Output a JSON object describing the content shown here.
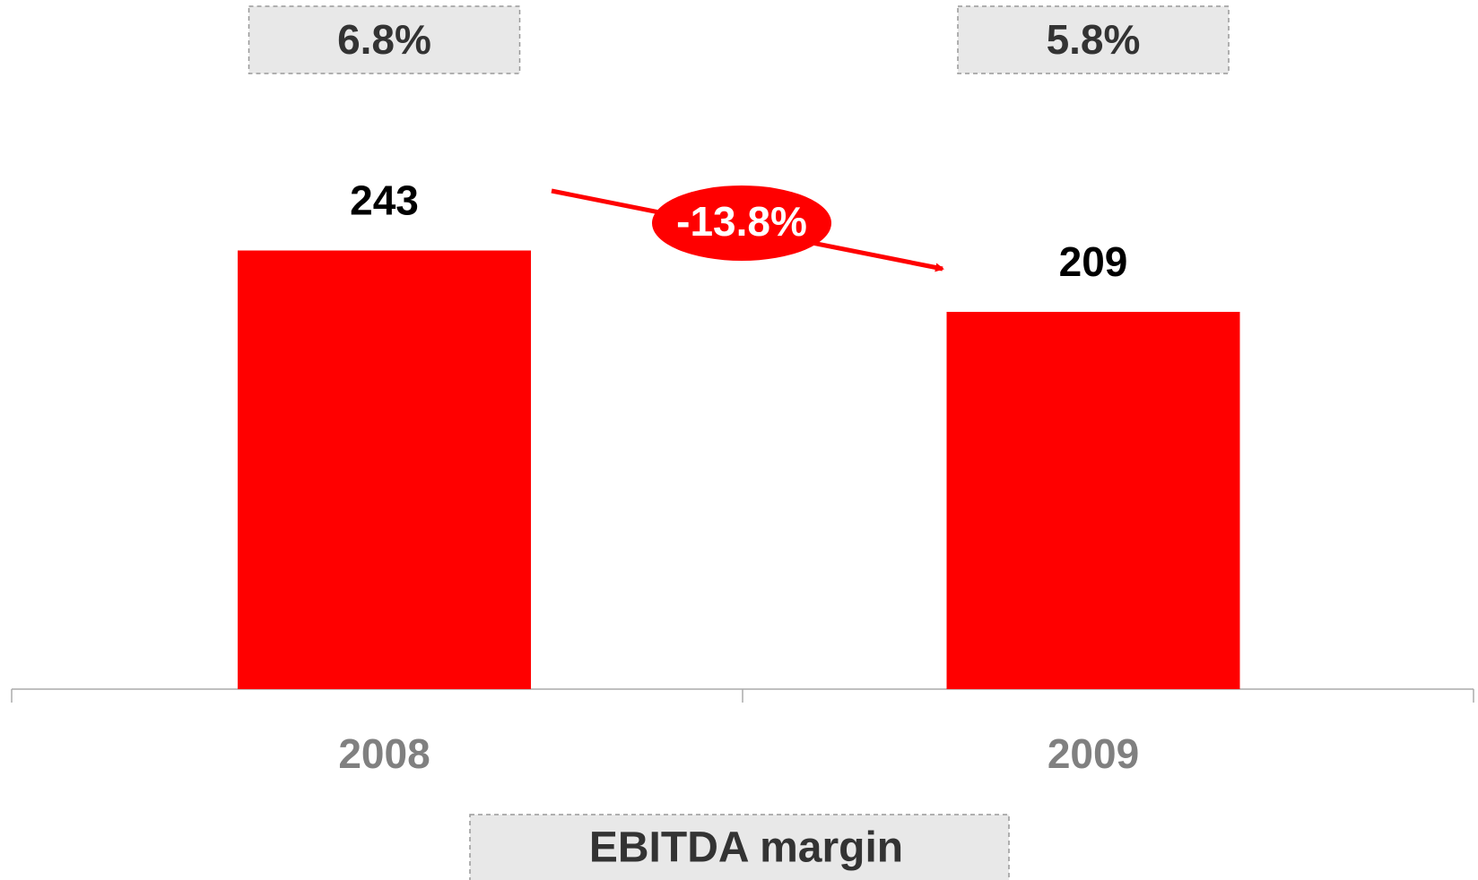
{
  "chart_data": {
    "type": "bar",
    "categories": [
      "2008",
      "2009"
    ],
    "values": [
      243,
      209
    ],
    "color": "#ff0000",
    "ylim": [
      0,
      280
    ],
    "annotation": "-13.8%",
    "margin": {
      "label": "EBITDA margin",
      "values": [
        6.8,
        5.8
      ],
      "value_labels": [
        "6.8%",
        "5.8%"
      ]
    }
  }
}
